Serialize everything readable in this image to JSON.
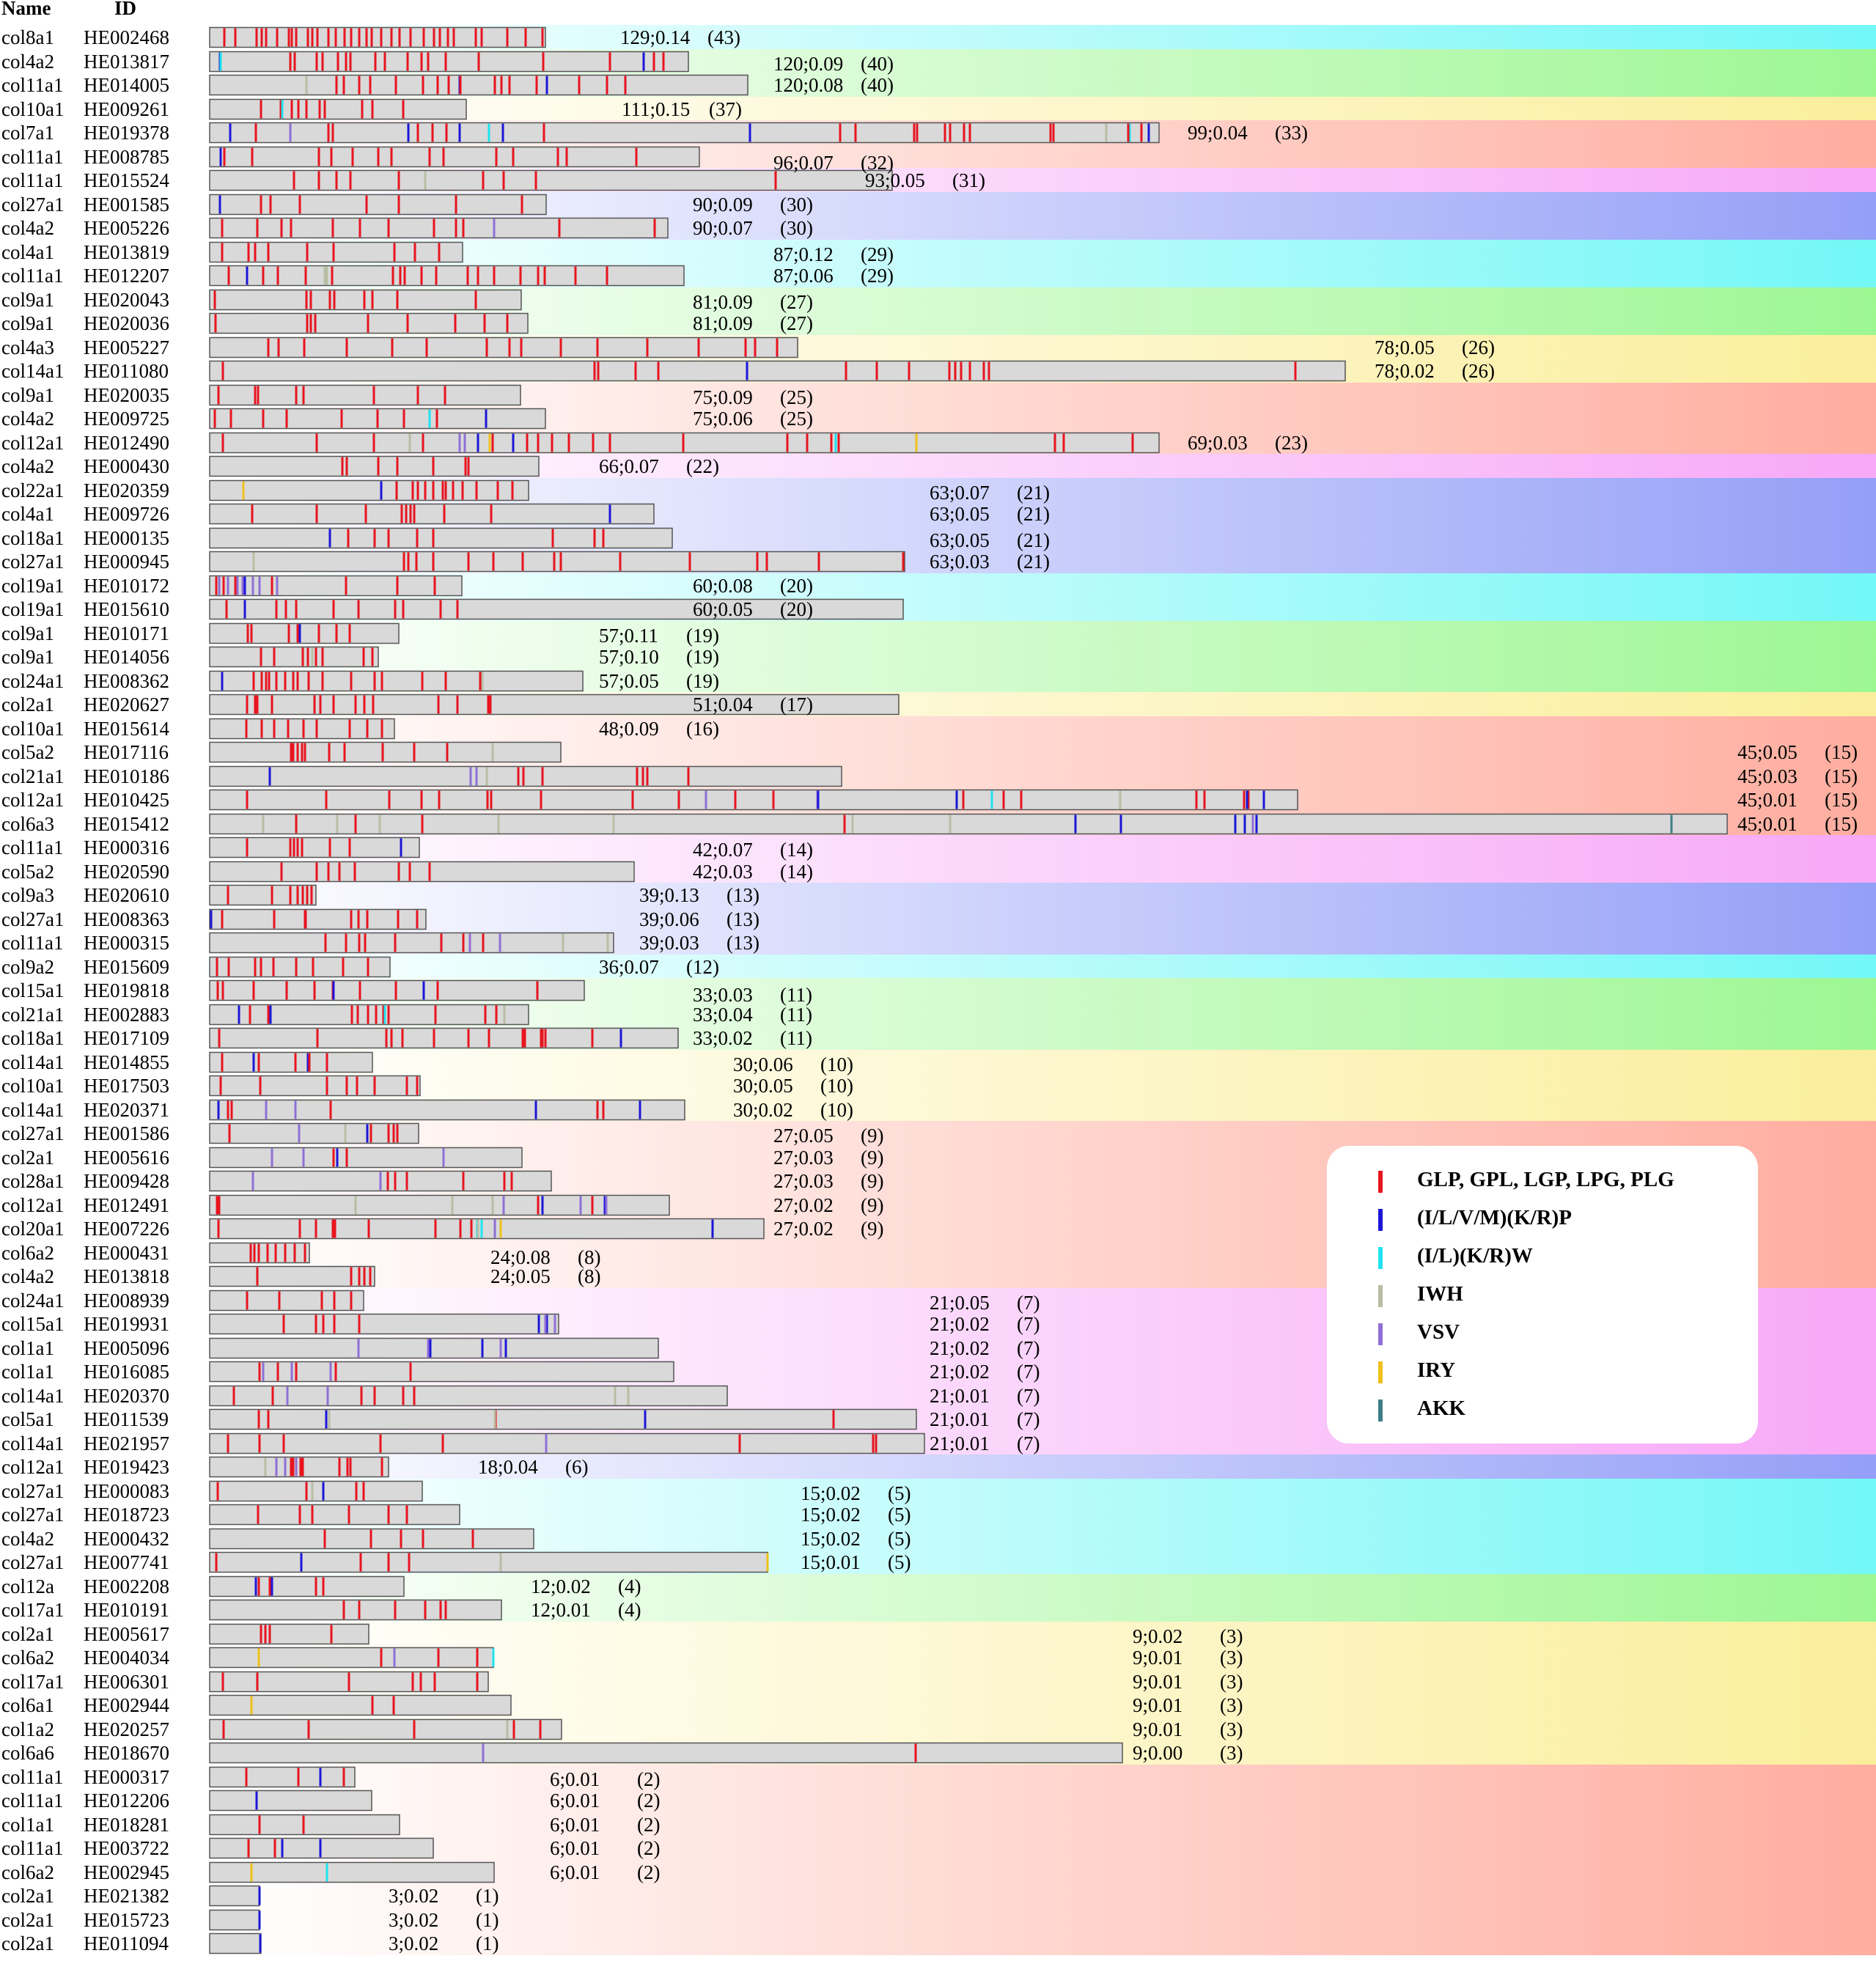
{
  "header": {
    "name_label": "Name",
    "id_label": "ID"
  },
  "legend": [
    {
      "label": "GLP, GPL, LGP, LPG, PLG",
      "color": "#e8141e"
    },
    {
      "label": "(I/L/V/M)(K/R)P",
      "color": "#1c16d8"
    },
    {
      "label": "(I/L)(K/R)W",
      "color": "#1fe3f0"
    },
    {
      "label": "IWH",
      "color": "#b8bea4"
    },
    {
      "label": "VSV",
      "color": "#8f6fd6"
    },
    {
      "label": "IRY",
      "color": "#f0c11a"
    },
    {
      "label": "AKK",
      "color": "#3f7d86"
    }
  ],
  "motif_colors": {
    "R": "#e8141e",
    "B": "#1c16d8",
    "C": "#1fe3f0",
    "G": "#b8bea4",
    "P": "#8f6fd6",
    "Y": "#f0c11a",
    "A": "#3f7d86"
  },
  "group_colors": [
    "#00f0f0",
    "#4cf03a",
    "#f7e04a",
    "#ff6a50",
    "#f060f0",
    "#3c50f0"
  ],
  "rows": [
    {
      "name": "col8a1",
      "id": "HE002468",
      "value": "129;0.14",
      "count": "(43)"
    },
    {
      "name": "col4a2",
      "id": "HE013817",
      "value": "120;0.09",
      "count": "(40)"
    },
    {
      "name": "col11a1",
      "id": "HE014005",
      "value": "120;0.08",
      "count": "(40)"
    },
    {
      "name": "col10a1",
      "id": "HE009261",
      "value": "111;0.15",
      "count": "(37)"
    },
    {
      "name": "col7a1",
      "id": "HE019378",
      "value": "99;0.04",
      "count": "(33)"
    },
    {
      "name": "col11a1",
      "id": "HE008785",
      "value": "96;0.07",
      "count": "(32)"
    },
    {
      "name": "col11a1",
      "id": "HE015524",
      "value": "93;0.05",
      "count": "(31)"
    },
    {
      "name": "col27a1",
      "id": "HE001585",
      "value": "90;0.09",
      "count": "(30)"
    },
    {
      "name": "col4a2",
      "id": "HE005226",
      "value": "90;0.07",
      "count": "(30)"
    },
    {
      "name": "col4a1",
      "id": "HE013819",
      "value": "87;0.12",
      "count": "(29)"
    },
    {
      "name": "col11a1",
      "id": "HE012207",
      "value": "87;0.06",
      "count": "(29)"
    },
    {
      "name": "col9a1",
      "id": "HE020043",
      "value": "81;0.09",
      "count": "(27)"
    },
    {
      "name": "col9a1",
      "id": "HE020036",
      "value": "81;0.09",
      "count": "(27)"
    },
    {
      "name": "col4a3",
      "id": "HE005227",
      "value": "78;0.05",
      "count": "(26)"
    },
    {
      "name": "col14a1",
      "id": "HE011080",
      "value": "78;0.02",
      "count": "(26)"
    },
    {
      "name": "col9a1",
      "id": "HE020035",
      "value": "75;0.09",
      "count": "(25)"
    },
    {
      "name": "col4a2",
      "id": "HE009725",
      "value": "75;0.06",
      "count": "(25)"
    },
    {
      "name": "col12a1",
      "id": "HE012490",
      "value": "69;0.03",
      "count": "(23)"
    },
    {
      "name": "col4a2",
      "id": "HE000430",
      "value": "66;0.07",
      "count": "(22)"
    },
    {
      "name": "col22a1",
      "id": "HE020359",
      "value": "63;0.07",
      "count": "(21)"
    },
    {
      "name": "col4a1",
      "id": "HE009726",
      "value": "63;0.05",
      "count": "(21)"
    },
    {
      "name": "col18a1",
      "id": "HE000135",
      "value": "63;0.05",
      "count": "(21)"
    },
    {
      "name": "col27a1",
      "id": "HE000945",
      "value": "63;0.03",
      "count": "(21)"
    },
    {
      "name": "col19a1",
      "id": "HE010172",
      "value": "60;0.08",
      "count": "(20)"
    },
    {
      "name": "col19a1",
      "id": "HE015610",
      "value": "60;0.05",
      "count": "(20)"
    },
    {
      "name": "col9a1",
      "id": "HE010171",
      "value": "57;0.11",
      "count": "(19)"
    },
    {
      "name": "col9a1",
      "id": "HE014056",
      "value": "57;0.10",
      "count": "(19)"
    },
    {
      "name": "col24a1",
      "id": "HE008362",
      "value": "57;0.05",
      "count": "(19)"
    },
    {
      "name": "col2a1",
      "id": "HE020627",
      "value": "51;0.04",
      "count": "(17)"
    },
    {
      "name": "col10a1",
      "id": "HE015614",
      "value": "48;0.09",
      "count": "(16)"
    },
    {
      "name": "col5a2",
      "id": "HE017116",
      "value": "45;0.05",
      "count": "(15)"
    },
    {
      "name": "col21a1",
      "id": "HE010186",
      "value": "45;0.03",
      "count": "(15)"
    },
    {
      "name": "col12a1",
      "id": "HE010425",
      "value": "45;0.01",
      "count": "(15)"
    },
    {
      "name": "col6a3",
      "id": "HE015412",
      "value": "45;0.01",
      "count": "(15)"
    },
    {
      "name": "col11a1",
      "id": "HE000316",
      "value": "42;0.07",
      "count": "(14)"
    },
    {
      "name": "col5a2",
      "id": "HE020590",
      "value": "42;0.03",
      "count": "(14)"
    },
    {
      "name": "col9a3",
      "id": "HE020610",
      "value": "39;0.13",
      "count": "(13)"
    },
    {
      "name": "col27a1",
      "id": "HE008363",
      "value": "39;0.06",
      "count": "(13)"
    },
    {
      "name": "col11a1",
      "id": "HE000315",
      "value": "39;0.03",
      "count": "(13)"
    },
    {
      "name": "col9a2",
      "id": "HE015609",
      "value": "36;0.07",
      "count": "(12)"
    },
    {
      "name": "col15a1",
      "id": "HE019818",
      "value": "33;0.03",
      "count": "(11)"
    },
    {
      "name": "col21a1",
      "id": "HE002883",
      "value": "33;0.04",
      "count": "(11)"
    },
    {
      "name": "col18a1",
      "id": "HE017109",
      "value": "33;0.02",
      "count": "(11)"
    },
    {
      "name": "col14a1",
      "id": "HE014855",
      "value": "30;0.06",
      "count": "(10)"
    },
    {
      "name": "col10a1",
      "id": "HE017503",
      "value": "30;0.05",
      "count": "(10)"
    },
    {
      "name": "col14a1",
      "id": "HE020371",
      "value": "30;0.02",
      "count": "(10)"
    },
    {
      "name": "col27a1",
      "id": "HE001586",
      "value": "27;0.05",
      "count": "(9)"
    },
    {
      "name": "col2a1",
      "id": "HE005616",
      "value": "27;0.03",
      "count": "(9)"
    },
    {
      "name": "col28a1",
      "id": "HE009428",
      "value": "27;0.03",
      "count": "(9)"
    },
    {
      "name": "col12a1",
      "id": "HE012491",
      "value": "27;0.02",
      "count": "(9)"
    },
    {
      "name": "col20a1",
      "id": "HE007226",
      "value": "27;0.02",
      "count": "(9)"
    },
    {
      "name": "col6a2",
      "id": "HE000431",
      "value": "24;0.08",
      "count": "(8)"
    },
    {
      "name": "col4a2",
      "id": "HE013818",
      "value": "24;0.05",
      "count": "(8)"
    },
    {
      "name": "col24a1",
      "id": "HE008939",
      "value": "21;0.05",
      "count": "(7)"
    },
    {
      "name": "col15a1",
      "id": "HE019931",
      "value": "21;0.02",
      "count": "(7)"
    },
    {
      "name": "col1a1",
      "id": "HE005096",
      "value": "21;0.02",
      "count": "(7)"
    },
    {
      "name": "col1a1",
      "id": "HE016085",
      "value": "21;0.02",
      "count": "(7)"
    },
    {
      "name": "col14a1",
      "id": "HE020370",
      "value": "21;0.01",
      "count": "(7)"
    },
    {
      "name": "col5a1",
      "id": "HE011539",
      "value": "21;0.01",
      "count": "(7)"
    },
    {
      "name": "col14a1",
      "id": "HE021957",
      "value": "21;0.01",
      "count": "(7)"
    },
    {
      "name": "col12a1",
      "id": "HE019423",
      "value": "18;0.04",
      "count": "(6)"
    },
    {
      "name": "col27a1",
      "id": "HE000083",
      "value": "15;0.02",
      "count": "(5)"
    },
    {
      "name": "col27a1",
      "id": "HE018723",
      "value": "15;0.02",
      "count": "(5)"
    },
    {
      "name": "col4a2",
      "id": "HE000432",
      "value": "15;0.02",
      "count": "(5)"
    },
    {
      "name": "col27a1",
      "id": "HE007741",
      "value": "15;0.01",
      "count": "(5)"
    },
    {
      "name": "col12a",
      "id": "HE002208",
      "value": "12;0.02",
      "count": "(4)"
    },
    {
      "name": "col17a1",
      "id": "HE010191",
      "value": "12;0.01",
      "count": "(4)"
    },
    {
      "name": "col2a1",
      "id": "HE005617",
      "value": "9;0.02",
      "count": "(3)"
    },
    {
      "name": "col6a2",
      "id": "HE004034",
      "value": "9;0.01",
      "count": "(3)"
    },
    {
      "name": "col17a1",
      "id": "HE006301",
      "value": "9;0.01",
      "count": "(3)"
    },
    {
      "name": "col6a1",
      "id": "HE002944",
      "value": "9;0.01",
      "count": "(3)"
    },
    {
      "name": "col1a2",
      "id": "HE020257",
      "value": "9;0.01",
      "count": "(3)"
    },
    {
      "name": "col6a6",
      "id": "HE018670",
      "value": "9;0.00",
      "count": "(3)"
    },
    {
      "name": "col11a1",
      "id": "HE000317",
      "value": "6;0.01",
      "count": "(2)"
    },
    {
      "name": "col11a1",
      "id": "HE012206",
      "value": "6;0.01",
      "count": "(2)"
    },
    {
      "name": "col1a1",
      "id": "HE018281",
      "value": "6;0.01",
      "count": "(2)"
    },
    {
      "name": "col11a1",
      "id": "HE003722",
      "value": "6;0.01",
      "count": "(2)"
    },
    {
      "name": "col6a2",
      "id": "HE002945",
      "value": "6;0.01",
      "count": "(2)"
    },
    {
      "name": "col2a1",
      "id": "HE021382",
      "value": "3;0.02",
      "count": "(1)"
    },
    {
      "name": "col2a1",
      "id": "HE015723",
      "value": "3;0.02",
      "count": "(1)"
    },
    {
      "name": "col2a1",
      "id": "HE011094",
      "value": "3;0.02",
      "count": "(1)"
    }
  ]
}
